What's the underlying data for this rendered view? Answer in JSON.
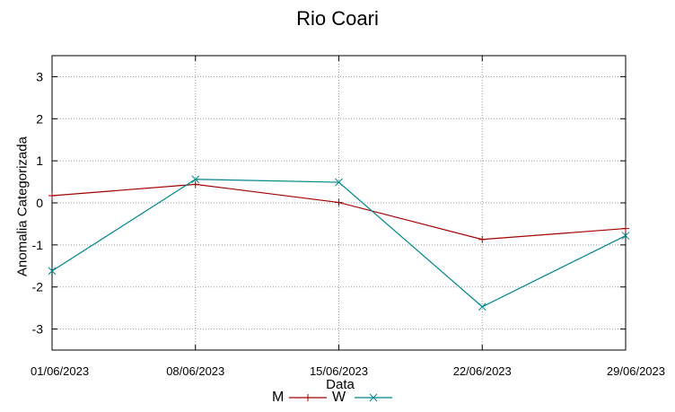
{
  "chart_data": {
    "type": "line",
    "title": "Rio Coari",
    "xlabel": "Data",
    "ylabel": "Anomalia Categorizada",
    "categories": [
      "01/06/2023",
      "08/06/2023",
      "15/06/2023",
      "22/06/2023",
      "29/06/2023"
    ],
    "ylim": [
      -3.5,
      3.5
    ],
    "yticks": [
      3,
      2,
      1,
      0,
      -1,
      -2,
      -3
    ],
    "grid": true,
    "legend_position": "bottom",
    "series": [
      {
        "name": "M",
        "values": [
          0.17,
          0.44,
          0.01,
          -0.87,
          -0.61
        ],
        "color": "#a00000",
        "marker": "plus"
      },
      {
        "name": "W",
        "values": [
          -1.62,
          0.56,
          0.49,
          -2.47,
          -0.78
        ],
        "color": "#00868b",
        "marker": "cross"
      }
    ]
  }
}
